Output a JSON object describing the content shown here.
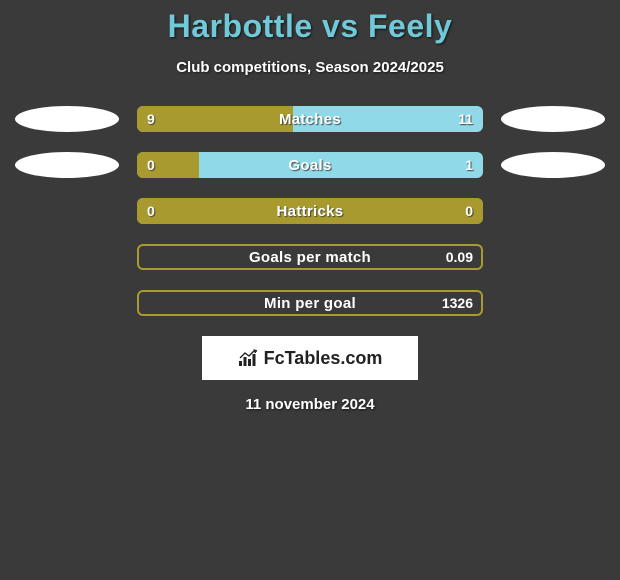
{
  "title": "Harbottle vs Feely",
  "subtitle": "Club competitions, Season 2024/2025",
  "date": "11 november 2024",
  "colors": {
    "background": "#3a3a3a",
    "title_color": "#6fc9d8",
    "text_color": "#ffffff",
    "left_fill": "#a89a2e",
    "right_bg": "#8fd9e8",
    "ellipse": "#ffffff"
  },
  "rows": [
    {
      "label": "Matches",
      "left_value": "9",
      "right_value": "11",
      "left_pct": 45,
      "show_ellipses": true
    },
    {
      "label": "Goals",
      "left_value": "0",
      "right_value": "1",
      "left_pct": 18,
      "show_ellipses": true
    },
    {
      "label": "Hattricks",
      "left_value": "0",
      "right_value": "0",
      "left_pct": 100,
      "show_ellipses": false
    },
    {
      "label": "Goals per match",
      "left_value": "",
      "right_value": "0.09",
      "left_pct": 100,
      "show_ellipses": false,
      "border_only": true
    },
    {
      "label": "Min per goal",
      "left_value": "",
      "right_value": "1326",
      "left_pct": 100,
      "show_ellipses": false,
      "border_only": true
    }
  ],
  "logo": {
    "text": "FcTables.com"
  }
}
